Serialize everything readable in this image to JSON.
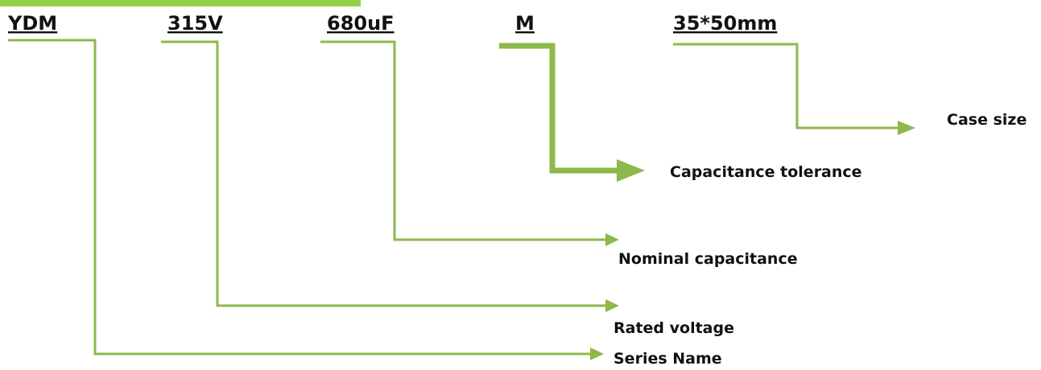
{
  "codes": [
    {
      "code": "YDM",
      "description": "Series Name"
    },
    {
      "code": "315V",
      "description": "Rated voltage"
    },
    {
      "code": "680uF",
      "description": "Nominal capacitance"
    },
    {
      "code": "M",
      "description": "Capacitance tolerance"
    },
    {
      "code": "35*50mm",
      "description": "Case size"
    }
  ]
}
